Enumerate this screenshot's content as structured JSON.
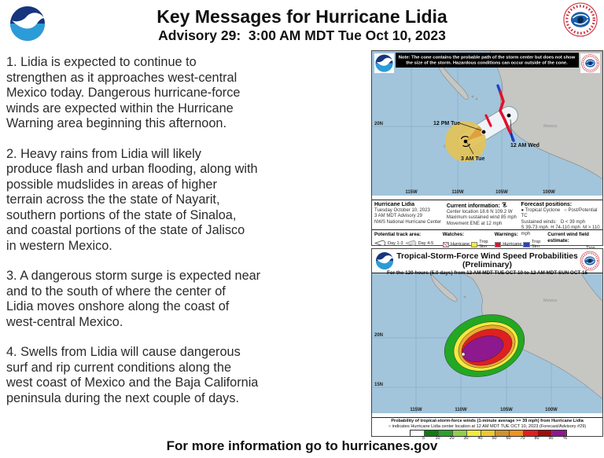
{
  "colors": {
    "ocean": "#a2c5dc",
    "land": "#c6c6c3",
    "land_border": "#8f8f8c",
    "grid": "#7ea8c2",
    "cone": "#eef3f7",
    "cone_border": "#8a9aa5",
    "wind_yellow": "#e2c35c",
    "wind_orange": "#dfa13e",
    "warn_red": "#e3112d",
    "warn_blue": "#2540cc",
    "watch_yellow": "#f7ef2e",
    "noaa_dark": "#15357d",
    "noaa_light": "#2b9cd8",
    "nhc_red": "#c03040",
    "nhc_blue": "#1a5fae"
  },
  "header": {
    "title": "Key Messages for Hurricane Lidia",
    "subtitle": "Advisory 29:  3:00 AM MDT Tue Oct 10, 2023"
  },
  "messages": [
    "1. Lidia is expected to continue to\nstrengthen as it approaches west-central\nMexico today. Dangerous hurricane-force\nwinds are expected within the Hurricane\nWarning area beginning this afternoon.",
    "2. Heavy rains from Lidia will likely\nproduce flash and urban flooding, along with\npossible mudslides in areas of higher\nterrain across the the state of Nayarit,\nsouthern portions of the state of Sinaloa,\nand coastal portions of the state of Jalisco\nin western Mexico.",
    "3. A dangerous storm surge is expected near\nand to the south of where the center of\nLidia moves onshore along the coast of\nwest-central Mexico.",
    "4. Swells from Lidia will cause dangerous\nsurf and rip current conditions along the\nwest coast of Mexico and the Baja California\npeninsula during the next couple of days."
  ],
  "track_map": {
    "note_line1": "Note: The cone contains the probable path of the storm center but does not show",
    "note_line2": "the size of the storm. Hazardous conditions can occur outside of the cone.",
    "geo_label": "Mexico",
    "point_labels": {
      "p12pm": "12 PM Tue",
      "p12am": "12 AM Wed",
      "p3am": "3 AM Tue"
    },
    "axis": {
      "lat20": "20N",
      "lon115": "115W",
      "lon110": "110W",
      "lon105": "105W",
      "lon100": "100W"
    },
    "info": {
      "storm_name": "Hurricane Lidia",
      "date_line": "Tuesday October 10, 2023",
      "advisory_line": "3 AM MDT Advisory 29",
      "agency_line": "NWS National Hurricane Center",
      "current_title": "Current information:",
      "center_location": "Center location 18.6 N 109.2 W",
      "max_wind": "Maximum sustained wind 85 mph",
      "movement": "Movement ENE at 12 mph",
      "forecast_title": "Forecast positions:",
      "types_line": "● Tropical Cyclone   ○ Post/Potential TC",
      "sustained_line": "Sustained winds:   D < 39 mph",
      "ranges_line": "S 39-73 mph  H 74-110 mph  M > 110 mph"
    },
    "legend": {
      "track_area_label": "Potential track area:",
      "day13": "Day 1-3",
      "day45": "Day 4-5",
      "watches_label": "Watches:",
      "warnings_label": "Warnings:",
      "windfield_label": "Current wind field estimate:",
      "hurricane": "Hurricane",
      "trop_stm": "Trop Stm"
    }
  },
  "prob_map": {
    "title": "Tropical-Storm-Force Wind Speed Probabilities (Preliminary)",
    "subtitle": "For the 120 hours (5.0 days) from 12 AM MDT TUE OCT 10 to 12 AM MDT SUN OCT 15",
    "geo_label": "Mexico",
    "axis": {
      "lat20": "20N",
      "lat15": "15N",
      "lon115": "115W",
      "lon110": "110W",
      "lon105": "105W",
      "lon100": "100W"
    },
    "caption_line1": "Probability of tropical-storm-force winds (1-minute average >= 39 mph) from Hurricane Lidia",
    "caption_line2": "○ indicates Hurricane Lidia center location at 12 AM MDT TUE OCT 10, 2023 (Forecast/Advisory #29)",
    "colorbar_colors": [
      "#ffffff",
      "#0f7c0f",
      "#2aa12a",
      "#8fcf4a",
      "#f2ea3d",
      "#efc72f",
      "#cd9232",
      "#ef9420",
      "#e02020",
      "#9e0e0e",
      "#8e188e"
    ],
    "colorbar_ticks": [
      "5",
      "10",
      "20",
      "30",
      "40",
      "50",
      "60",
      "70",
      "80",
      "90",
      "%"
    ]
  },
  "footer": "For more information go to hurricanes.gov"
}
